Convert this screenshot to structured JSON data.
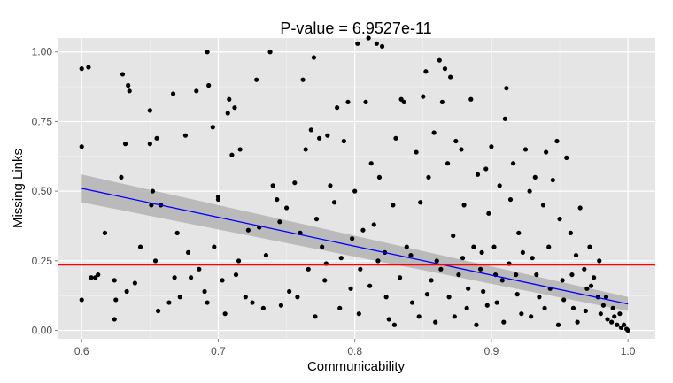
{
  "chart_data": {
    "type": "scatter",
    "title": "P-value = 6.9527e-11",
    "xlabel": "Communicability",
    "ylabel": "Missing Links",
    "xlim": [
      0.583,
      1.02
    ],
    "ylim": [
      -0.03,
      1.05
    ],
    "x_ticks": [
      "0.6",
      "0.7",
      "0.8",
      "0.9",
      "1.0"
    ],
    "y_ticks": [
      "0.00",
      "0.25",
      "0.50",
      "0.75",
      "1.00"
    ],
    "grid": true,
    "legend": "none",
    "colors": {
      "panel": "#e5e5e5",
      "grid_major": "#ffffff",
      "points": "#000000",
      "fit_line": "#0000ff",
      "confidence_band": "#b3b3b3",
      "hline": "#ff0000"
    },
    "regression": {
      "x": [
        0.6,
        1.0
      ],
      "y": [
        0.51,
        0.095
      ],
      "se_low": [
        0.46,
        0.07
      ],
      "se_high": [
        0.56,
        0.12
      ]
    },
    "hline_y": 0.235,
    "points": [
      [
        0.6,
        0.66
      ],
      [
        0.6,
        0.11
      ],
      [
        0.6,
        0.94
      ],
      [
        0.605,
        0.945
      ],
      [
        0.607,
        0.19
      ],
      [
        0.612,
        0.2
      ],
      [
        0.617,
        0.35
      ],
      [
        0.624,
        0.18
      ],
      [
        0.624,
        0.04
      ],
      [
        0.625,
        0.11
      ],
      [
        0.629,
        0.55
      ],
      [
        0.63,
        0.92
      ],
      [
        0.632,
        0.67
      ],
      [
        0.633,
        0.14
      ],
      [
        0.634,
        0.88
      ],
      [
        0.635,
        0.86
      ],
      [
        0.639,
        0.17
      ],
      [
        0.643,
        0.3
      ],
      [
        0.65,
        0.79
      ],
      [
        0.65,
        0.67
      ],
      [
        0.651,
        0.45
      ],
      [
        0.652,
        0.5
      ],
      [
        0.654,
        0.25
      ],
      [
        0.655,
        0.69
      ],
      [
        0.656,
        0.07
      ],
      [
        0.658,
        0.45
      ],
      [
        0.667,
        0.85
      ],
      [
        0.668,
        0.19
      ],
      [
        0.67,
        0.35
      ],
      [
        0.672,
        0.12
      ],
      [
        0.676,
        0.7
      ],
      [
        0.678,
        0.28
      ],
      [
        0.68,
        0.19
      ],
      [
        0.684,
        0.86
      ],
      [
        0.69,
        0.14
      ],
      [
        0.692,
        0.1
      ],
      [
        0.693,
        0.88
      ],
      [
        0.692,
        1.0
      ],
      [
        0.696,
        0.73
      ],
      [
        0.697,
        0.3
      ],
      [
        0.7,
        0.48
      ],
      [
        0.7,
        0.47
      ],
      [
        0.703,
        0.18
      ],
      [
        0.705,
        0.06
      ],
      [
        0.707,
        0.78
      ],
      [
        0.708,
        0.83
      ],
      [
        0.71,
        0.63
      ],
      [
        0.712,
        0.8
      ],
      [
        0.713,
        0.2
      ],
      [
        0.716,
        0.65
      ],
      [
        0.72,
        0.12
      ],
      [
        0.722,
        0.36
      ],
      [
        0.725,
        0.1
      ],
      [
        0.728,
        0.9
      ],
      [
        0.73,
        0.37
      ],
      [
        0.733,
        0.08
      ],
      [
        0.738,
        1.0
      ],
      [
        0.74,
        0.52
      ],
      [
        0.743,
        0.47
      ],
      [
        0.746,
        0.09
      ],
      [
        0.75,
        0.44
      ],
      [
        0.752,
        0.14
      ],
      [
        0.756,
        0.53
      ],
      [
        0.76,
        0.35
      ],
      [
        0.762,
        0.9
      ],
      [
        0.764,
        0.65
      ],
      [
        0.766,
        0.22
      ],
      [
        0.768,
        0.72
      ],
      [
        0.77,
        0.98
      ],
      [
        0.772,
        0.4
      ],
      [
        0.774,
        0.69
      ],
      [
        0.776,
        0.3
      ],
      [
        0.778,
        0.18
      ],
      [
        0.78,
        0.7
      ],
      [
        0.782,
        0.52
      ],
      [
        0.785,
        0.46
      ],
      [
        0.787,
        0.8
      ],
      [
        0.79,
        0.26
      ],
      [
        0.792,
        0.68
      ],
      [
        0.795,
        0.82
      ],
      [
        0.797,
        0.15
      ],
      [
        0.8,
        0.5
      ],
      [
        0.802,
        1.03
      ],
      [
        0.804,
        0.22
      ],
      [
        0.806,
        0.36
      ],
      [
        0.808,
        0.82
      ],
      [
        0.81,
        1.05
      ],
      [
        0.812,
        0.6
      ],
      [
        0.814,
        0.38
      ],
      [
        0.816,
        1.03
      ],
      [
        0.818,
        0.55
      ],
      [
        0.82,
        1.02
      ],
      [
        0.822,
        0.28
      ],
      [
        0.825,
        0.04
      ],
      [
        0.828,
        0.45
      ],
      [
        0.83,
        0.69
      ],
      [
        0.834,
        0.83
      ],
      [
        0.836,
        0.82
      ],
      [
        0.838,
        0.3
      ],
      [
        0.842,
        0.1
      ],
      [
        0.845,
        0.64
      ],
      [
        0.848,
        0.46
      ],
      [
        0.85,
        0.84
      ],
      [
        0.852,
        0.93
      ],
      [
        0.854,
        0.55
      ],
      [
        0.856,
        0.18
      ],
      [
        0.858,
        0.71
      ],
      [
        0.86,
        0.25
      ],
      [
        0.862,
        0.97
      ],
      [
        0.864,
        0.82
      ],
      [
        0.866,
        0.94
      ],
      [
        0.868,
        0.6
      ],
      [
        0.87,
        0.91
      ],
      [
        0.872,
        0.34
      ],
      [
        0.874,
        0.68
      ],
      [
        0.876,
        0.2
      ],
      [
        0.878,
        0.65
      ],
      [
        0.88,
        0.45
      ],
      [
        0.882,
        0.08
      ],
      [
        0.885,
        0.83
      ],
      [
        0.887,
        0.3
      ],
      [
        0.89,
        0.56
      ],
      [
        0.892,
        0.22
      ],
      [
        0.894,
        0.14
      ],
      [
        0.896,
        0.58
      ],
      [
        0.898,
        0.42
      ],
      [
        0.9,
        0.66
      ],
      [
        0.902,
        0.3
      ],
      [
        0.904,
        0.1
      ],
      [
        0.906,
        0.52
      ],
      [
        0.908,
        0.18
      ],
      [
        0.91,
        0.76
      ],
      [
        0.911,
        0.87
      ],
      [
        0.914,
        0.47
      ],
      [
        0.916,
        0.6
      ],
      [
        0.918,
        0.2
      ],
      [
        0.92,
        0.35
      ],
      [
        0.922,
        0.06
      ],
      [
        0.925,
        0.65
      ],
      [
        0.928,
        0.5
      ],
      [
        0.93,
        0.26
      ],
      [
        0.932,
        0.55
      ],
      [
        0.935,
        0.12
      ],
      [
        0.938,
        0.45
      ],
      [
        0.94,
        0.64
      ],
      [
        0.942,
        0.3
      ],
      [
        0.945,
        0.54
      ],
      [
        0.948,
        0.68
      ],
      [
        0.95,
        0.4
      ],
      [
        0.952,
        0.18
      ],
      [
        0.955,
        0.62
      ],
      [
        0.958,
        0.35
      ],
      [
        0.96,
        0.08
      ],
      [
        0.962,
        0.27
      ],
      [
        0.965,
        0.44
      ],
      [
        0.968,
        0.22
      ],
      [
        0.97,
        0.15
      ],
      [
        0.972,
        0.3
      ],
      [
        0.975,
        0.19
      ],
      [
        0.978,
        0.12
      ],
      [
        0.98,
        0.06
      ],
      [
        0.982,
        0.09
      ],
      [
        0.985,
        0.04
      ],
      [
        0.988,
        0.03
      ],
      [
        0.99,
        0.05
      ],
      [
        0.992,
        0.02
      ],
      [
        0.995,
        0.01
      ],
      [
        0.997,
        0.02
      ],
      [
        0.999,
        0.005
      ],
      [
        1.0,
        0.0
      ],
      [
        0.61,
        0.19
      ],
      [
        0.664,
        0.1
      ],
      [
        0.686,
        0.22
      ],
      [
        0.715,
        0.25
      ],
      [
        0.735,
        0.27
      ],
      [
        0.745,
        0.39
      ],
      [
        0.758,
        0.12
      ],
      [
        0.771,
        0.05
      ],
      [
        0.779,
        0.24
      ],
      [
        0.789,
        0.08
      ],
      [
        0.798,
        0.33
      ],
      [
        0.803,
        0.06
      ],
      [
        0.811,
        0.16
      ],
      [
        0.817,
        0.25
      ],
      [
        0.823,
        0.12
      ],
      [
        0.829,
        0.02
      ],
      [
        0.833,
        0.19
      ],
      [
        0.841,
        0.27
      ],
      [
        0.847,
        0.05
      ],
      [
        0.853,
        0.13
      ],
      [
        0.859,
        0.03
      ],
      [
        0.863,
        0.22
      ],
      [
        0.869,
        0.12
      ],
      [
        0.873,
        0.05
      ],
      [
        0.879,
        0.26
      ],
      [
        0.883,
        0.15
      ],
      [
        0.889,
        0.02
      ],
      [
        0.893,
        0.28
      ],
      [
        0.897,
        0.09
      ],
      [
        0.903,
        0.2
      ],
      [
        0.909,
        0.03
      ],
      [
        0.913,
        0.24
      ],
      [
        0.919,
        0.13
      ],
      [
        0.923,
        0.28
      ],
      [
        0.929,
        0.05
      ],
      [
        0.933,
        0.2
      ],
      [
        0.939,
        0.08
      ],
      [
        0.943,
        0.15
      ],
      [
        0.949,
        0.02
      ],
      [
        0.953,
        0.11
      ],
      [
        0.959,
        0.2
      ],
      [
        0.963,
        0.03
      ],
      [
        0.969,
        0.07
      ],
      [
        0.973,
        0.16
      ],
      [
        0.979,
        0.25
      ],
      [
        0.984,
        0.12
      ],
      [
        0.989,
        0.08
      ],
      [
        0.994,
        0.06
      ]
    ]
  }
}
